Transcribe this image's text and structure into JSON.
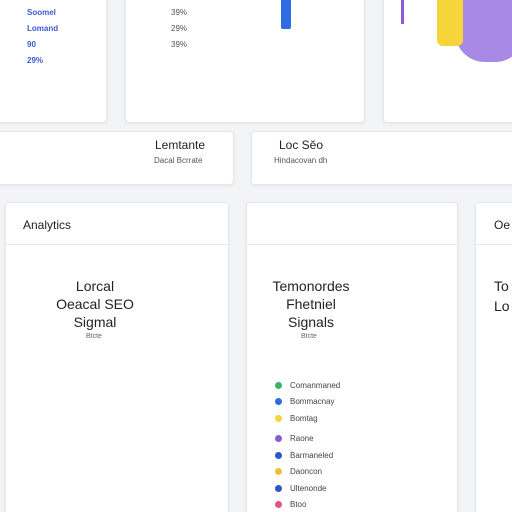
{
  "top_left": {
    "lines": [
      "Soomel",
      "Lomand",
      "90",
      "29%"
    ]
  },
  "top_mid": {
    "pcts": [
      "39%",
      "29%",
      "39%"
    ]
  },
  "row2_left": {
    "title": "Lemtante",
    "sub": "Dacal Bcrrate"
  },
  "row2_right": {
    "title": "Loc Sĕo",
    "sub": "Hindacovan dh"
  },
  "panel_analytics": {
    "heading": "Analytics",
    "title_lines": [
      "Lorcal",
      "Oeacal SEO",
      "Sigmal"
    ],
    "tiny": "Btcte"
  },
  "panel_middle": {
    "title_lines": [
      "Temonordes",
      "Fhetniel",
      "Signals"
    ],
    "tiny": "Btcte"
  },
  "panel_right": {
    "heading": "Oe",
    "title_lines": [
      "To",
      "Lo"
    ]
  },
  "legend": [
    {
      "label": "Comanmaned",
      "color": "#3bb36a"
    },
    {
      "label": "Bommacnay",
      "color": "#2f6be4"
    },
    {
      "label": "Bomtag",
      "color": "#f5d53a"
    },
    {
      "label": "Raone",
      "color": "#8b5ad8"
    },
    {
      "label": "Barmaneled",
      "color": "#2f53c8"
    },
    {
      "label": "Daoncon",
      "color": "#e6c23a"
    },
    {
      "label": "Ultenonde",
      "color": "#2f53c8"
    },
    {
      "label": "Btoo",
      "color": "#e0567a"
    }
  ]
}
